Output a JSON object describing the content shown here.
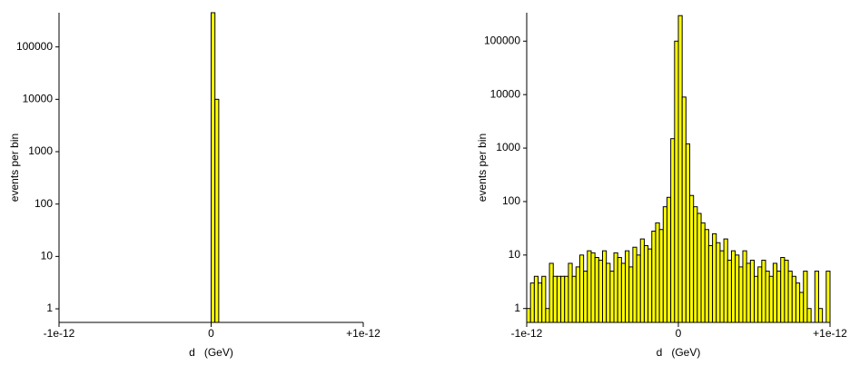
{
  "chart_data": [
    {
      "type": "histogram",
      "x_label": "d   (GeV)",
      "y_label": "events per bin",
      "log_y": true,
      "color": "#ffff00",
      "bins": [
        0,
        2.5e-14,
        5e-14
      ],
      "counts": [
        450000,
        10000
      ],
      "xlim": [
        -1e-12,
        1e-12
      ],
      "xticks": [
        {
          "value": -1e-12,
          "label": "-1e-12"
        },
        0,
        {
          "value": 1e-12,
          "label": "+1e-12"
        }
      ],
      "ylim": [
        0.55,
        450000
      ],
      "yticks": [
        1,
        10,
        100,
        1000,
        10000,
        100000
      ]
    },
    {
      "type": "histogram",
      "x_label": "d   (GeV)",
      "y_label": "events per bin",
      "log_y": true,
      "color": "#ffff00",
      "bins": [
        -1e-12,
        -9.75e-13,
        -9.5e-13,
        -9.25e-13,
        -9e-13,
        -8.75e-13,
        -8.5e-13,
        -8.25e-13,
        -8e-13,
        -7.75e-13,
        -7.5e-13,
        -7.25e-13,
        -7e-13,
        -6.75e-13,
        -6.5e-13,
        -6.25e-13,
        -6e-13,
        -5.75e-13,
        -5.5e-13,
        -5.25e-13,
        -5e-13,
        -4.75e-13,
        -4.5e-13,
        -4.25e-13,
        -4e-13,
        -3.75e-13,
        -3.5e-13,
        -3.25e-13,
        -3e-13,
        -2.75e-13,
        -2.5e-13,
        -2.25e-13,
        -2e-13,
        -1.75e-13,
        -1.5e-13,
        -1.25e-13,
        -1e-13,
        -7.5e-14,
        -5e-14,
        -2.5e-14,
        0,
        2.5e-14,
        5e-14,
        7.5e-14,
        1e-13,
        1.25e-13,
        1.5e-13,
        1.75e-13,
        2e-13,
        2.25e-13,
        2.5e-13,
        2.75e-13,
        3e-13,
        3.25e-13,
        3.5e-13,
        3.75e-13,
        4e-13,
        4.25e-13,
        4.5e-13,
        4.75e-13,
        5e-13,
        5.25e-13,
        5.5e-13,
        5.75e-13,
        6e-13,
        6.25e-13,
        6.5e-13,
        6.75e-13,
        7e-13,
        7.25e-13,
        7.5e-13,
        7.75e-13,
        8e-13,
        8.25e-13,
        8.5e-13,
        8.75e-13,
        9e-13,
        9.25e-13,
        9.5e-13,
        9.75e-13,
        1e-12
      ],
      "counts": [
        1,
        3,
        4,
        3,
        4,
        1,
        7,
        4,
        4,
        4,
        4,
        7,
        4,
        6,
        10,
        5,
        12,
        11,
        9,
        8,
        12,
        7,
        5,
        11,
        9,
        7,
        12,
        6,
        14,
        10,
        20,
        15,
        13,
        28,
        40,
        30,
        80,
        120,
        1500,
        100000,
        300000,
        9000,
        1200,
        130,
        80,
        60,
        40,
        30,
        15,
        25,
        17,
        12,
        20,
        8,
        12,
        10,
        6,
        12,
        7,
        8,
        4,
        6,
        8,
        5,
        4,
        7,
        5,
        9,
        8,
        5,
        4,
        3,
        2,
        5,
        1,
        0,
        5,
        1,
        0,
        5
      ],
      "xlim": [
        -1e-12,
        1e-12
      ],
      "xticks": [
        {
          "value": -1e-12,
          "label": "-1e-12"
        },
        0,
        {
          "value": 1e-12,
          "label": "+1e-12"
        }
      ],
      "ylim": [
        0.55,
        340000
      ],
      "yticks": [
        1,
        10,
        100,
        1000,
        10000,
        100000
      ]
    }
  ]
}
